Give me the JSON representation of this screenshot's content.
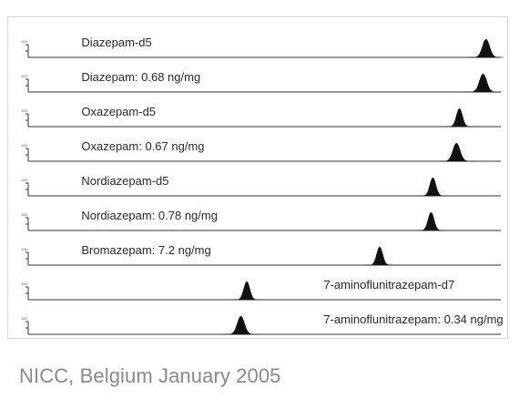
{
  "caption": "NICC, Belgium January 2005",
  "chart_data": {
    "type": "line",
    "title": "",
    "xlabel": "",
    "ylabel": "",
    "xlim": [
      0.5,
      8.5
    ],
    "grid": false,
    "x_ticks": [
      "0.50",
      "1.00",
      "1.50",
      "2.00",
      "2.50",
      "3.00",
      "3.50",
      "4.00",
      "4.50",
      "5.00",
      "5.50",
      "6.00",
      "6.50",
      "7.00",
      "7.50",
      "8.00",
      "8.50"
    ],
    "series": [
      {
        "name": "Diazepam-d5",
        "peak_rt": 8.25,
        "peak_height": 0.9,
        "peak_width": 0.06,
        "label_x": 1.4,
        "label_anchor": "start"
      },
      {
        "name": "Diazepam: 0.68 ng/mg",
        "peak_rt": 8.2,
        "peak_height": 0.9,
        "peak_width": 0.06,
        "label_x": 1.4,
        "label_anchor": "start"
      },
      {
        "name": "Oxazepam-d5",
        "peak_rt": 7.8,
        "peak_height": 0.9,
        "peak_width": 0.05,
        "label_x": 1.4,
        "label_anchor": "start"
      },
      {
        "name": "Oxazepam: 0.67 ng/mg",
        "peak_rt": 7.75,
        "peak_height": 0.9,
        "peak_width": 0.06,
        "label_x": 1.4,
        "label_anchor": "start"
      },
      {
        "name": "Nordiazepam-d5",
        "peak_rt": 7.35,
        "peak_height": 0.9,
        "peak_width": 0.05,
        "label_x": 1.4,
        "label_anchor": "start"
      },
      {
        "name": "Nordiazepam: 0.78 ng/mg",
        "peak_rt": 7.32,
        "peak_height": 0.9,
        "peak_width": 0.05,
        "label_x": 1.4,
        "label_anchor": "start"
      },
      {
        "name": "Bromazepam: 7.2 ng/mg",
        "peak_rt": 6.45,
        "peak_height": 0.9,
        "peak_width": 0.05,
        "label_x": 1.4,
        "label_anchor": "start"
      },
      {
        "name": "7-aminoflunitrazepam-d7",
        "peak_rt": 4.2,
        "peak_height": 0.9,
        "peak_width": 0.05,
        "label_x": 5.5,
        "label_anchor": "start"
      },
      {
        "name": "7-aminoflunitrazepam: 0.34 ng/mg",
        "peak_rt": 4.1,
        "peak_height": 0.9,
        "peak_width": 0.06,
        "label_x": 5.5,
        "label_anchor": "start"
      }
    ]
  }
}
